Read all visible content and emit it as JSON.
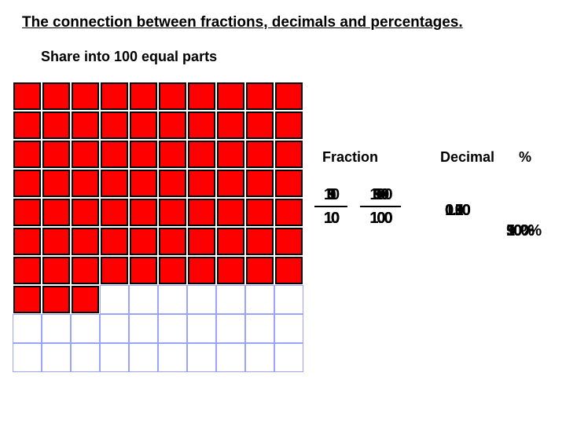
{
  "title": "The connection between fractions, decimals and percentages.",
  "subtitle": "Share into 100 equal parts",
  "headers": {
    "fraction": "Fraction",
    "decimal": "Decimal",
    "percent": "%"
  },
  "grid": {
    "cols": 10,
    "rows": 10,
    "filled_rows_full": 7,
    "last_row_filled": 3,
    "empty_border_color": "#9aa3ff",
    "filled_color": "#ff0000",
    "filled_border_color": "#000000"
  },
  "fractions_small": {
    "numerators": [
      "1",
      "5",
      "9",
      "10"
    ],
    "denominators": [
      "10",
      "10",
      "10",
      "10"
    ]
  },
  "fractions_large": {
    "numerators": [
      "10",
      "50",
      "90",
      "100"
    ],
    "denominators": [
      "100",
      "100",
      "100",
      "100"
    ]
  },
  "decimals": [
    "0.10",
    "0.50",
    "0.90",
    "1.00"
  ],
  "percents": [
    "10%",
    "50%",
    "90%",
    "100%"
  ],
  "style": {
    "title_fontsize": 19,
    "subtitle_fontsize": 18,
    "header_fontsize": 18,
    "value_fontsize": 20,
    "background": "#ffffff"
  }
}
